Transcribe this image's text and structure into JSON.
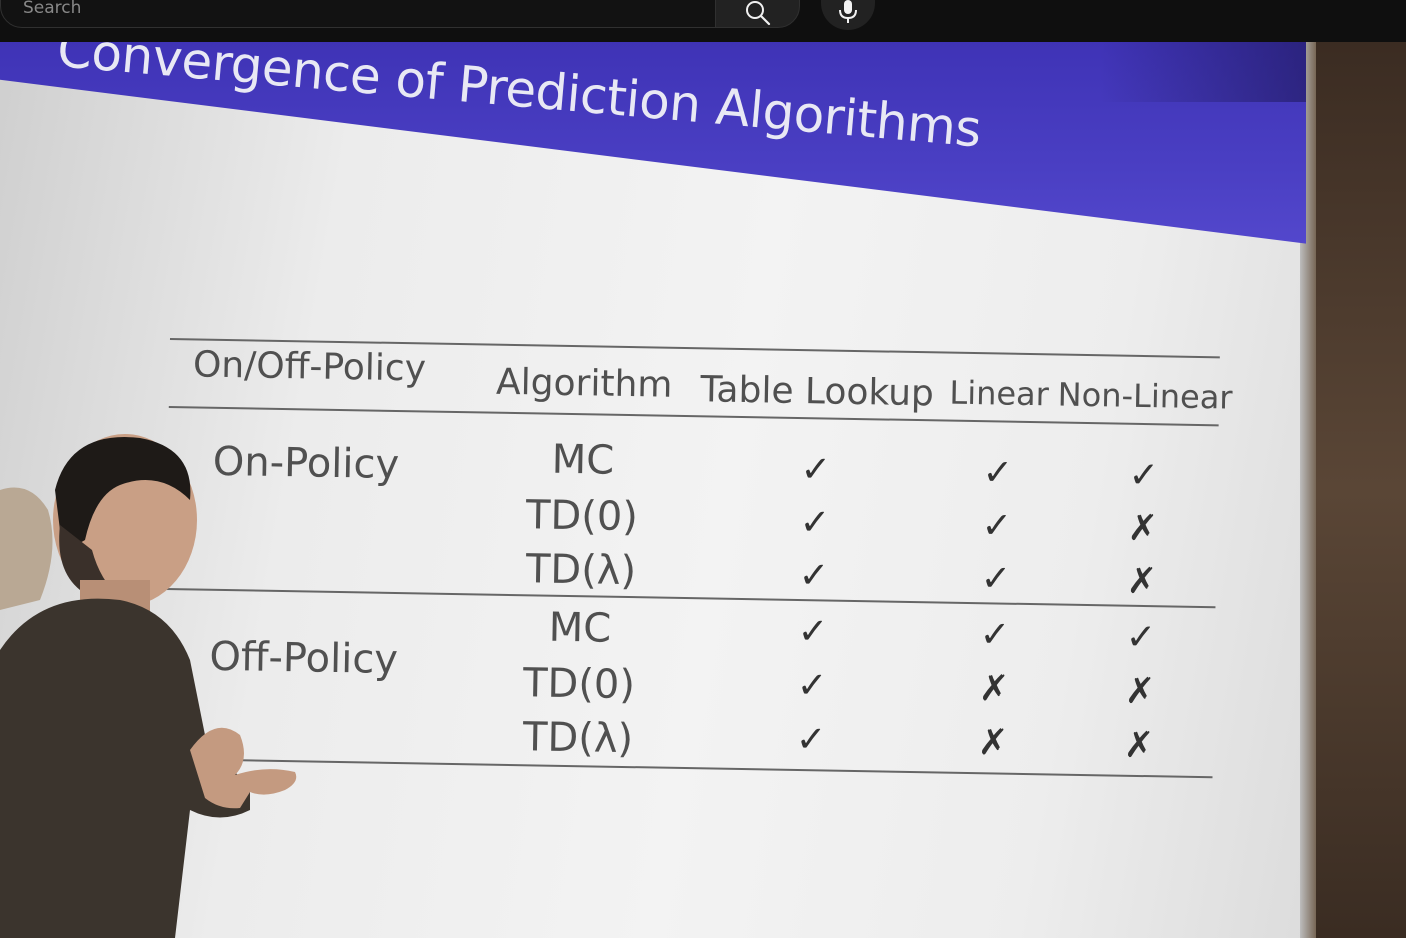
{
  "search": {
    "placeholder": "Search",
    "search_button_icon": "search-icon",
    "mic_button_icon": "microphone-icon"
  },
  "slide": {
    "title": "Convergence of Prediction Algorithms",
    "table": {
      "headers": [
        "On/Off-Policy",
        "Algorithm",
        "Table Lookup",
        "Linear",
        "Non-Linear"
      ],
      "groups": [
        {
          "label": "On-Policy",
          "rows": [
            {
              "algorithm": "MC",
              "table_lookup": "✓",
              "linear": "✓",
              "non_linear": "✓"
            },
            {
              "algorithm": "TD(0)",
              "table_lookup": "✓",
              "linear": "✓",
              "non_linear": "✗"
            },
            {
              "algorithm": "TD(λ)",
              "table_lookup": "✓",
              "linear": "✓",
              "non_linear": "✗"
            }
          ]
        },
        {
          "label": "Off-Policy",
          "rows": [
            {
              "algorithm": "MC",
              "table_lookup": "✓",
              "linear": "✓",
              "non_linear": "✓"
            },
            {
              "algorithm": "TD(0)",
              "table_lookup": "✓",
              "linear": "✗",
              "non_linear": "✗"
            },
            {
              "algorithm": "TD(λ)",
              "table_lookup": "✓",
              "linear": "✗",
              "non_linear": "✗"
            }
          ]
        }
      ]
    }
  },
  "colors": {
    "title_band": "#4a3fc3",
    "title_text": "#e8e8f4",
    "screen": "#eeeeee",
    "topbar": "#0f0f0f"
  }
}
